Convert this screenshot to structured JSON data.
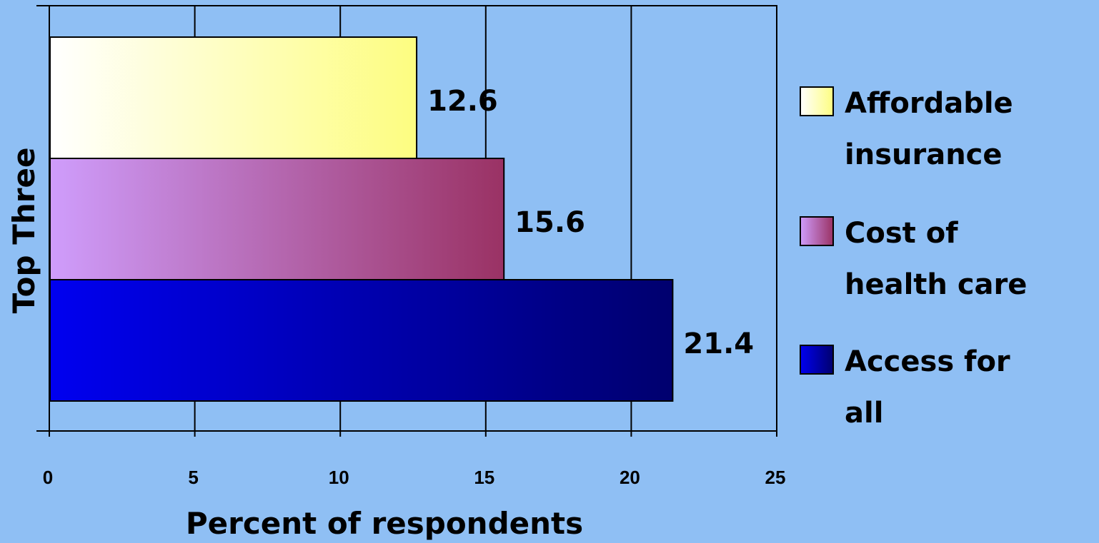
{
  "chart_data": {
    "type": "bar",
    "orientation": "horizontal",
    "title": "",
    "xlabel": "Percent of respondents",
    "ylabel": "Top Three",
    "xlim": [
      0,
      25
    ],
    "x_ticks": [
      "0",
      "5",
      "10",
      "15",
      "20",
      "25"
    ],
    "grid": true,
    "legend_position": "right",
    "series": [
      {
        "name": "Affordable insurance",
        "legend_lines": [
          "Affordable",
          "insurance"
        ],
        "value": 12.6,
        "label": "12.6",
        "color_start": "#ffffff",
        "color_end": "#fdfd80"
      },
      {
        "name": "Cost of health care",
        "legend_lines": [
          "Cost of",
          "health care"
        ],
        "value": 15.6,
        "label": "15.6",
        "color_start": "#cf9dfc",
        "color_end": "#9a3264"
      },
      {
        "name": "Access for all",
        "legend_lines": [
          "Access for",
          "all"
        ],
        "value": 21.4,
        "label": "21.4",
        "color_start": "#0000f0",
        "color_end": "#00006e"
      }
    ]
  },
  "colors": {
    "background": "#8fbff4",
    "grid": "#000000"
  }
}
